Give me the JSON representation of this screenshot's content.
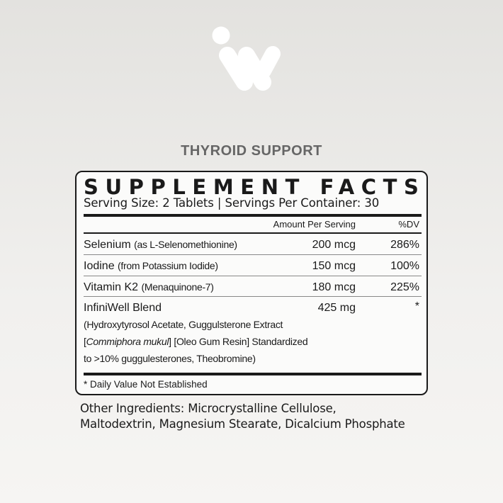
{
  "brand": {
    "logo": "infiniwell-w-logo"
  },
  "product_title": "THYROID SUPPORT",
  "facts": {
    "heading": "SUPPLEMENT FACTS",
    "serving": "Serving Size: 2 Tablets | Servings Per Container: 30",
    "col_amount": "Amount Per Serving",
    "col_dv": "%DV",
    "rows": [
      {
        "name": "Selenium",
        "detail": "(as L-Selenomethionine)",
        "amount": "200 mcg",
        "dv": "286%"
      },
      {
        "name": "Iodine",
        "detail": "(from Potassium Iodide)",
        "amount": "150 mcg",
        "dv": "100%"
      },
      {
        "name": "Vitamin K2",
        "detail": "(Menaquinone-7)",
        "amount": "180 mcg",
        "dv": "225%"
      }
    ],
    "blend": {
      "name": "InfiniWell Blend",
      "amount": "425 mg",
      "dv": "*",
      "line1": "(Hydroxytyrosol Acetate, Guggulsterone Extract",
      "line2_italic": "Commiphora mukul",
      "line2_rest": "] [Oleo Gum Resin] Standardized",
      "line3": "to >10% guggulesterones, Theobromine)"
    },
    "footnote": "* Daily Value Not Established"
  },
  "other": {
    "line1": "Other Ingredients: Microcrystalline Cellulose,",
    "line2": "Maltodextrin, Magnesium Stearate, Dicalcium Phosphate"
  }
}
